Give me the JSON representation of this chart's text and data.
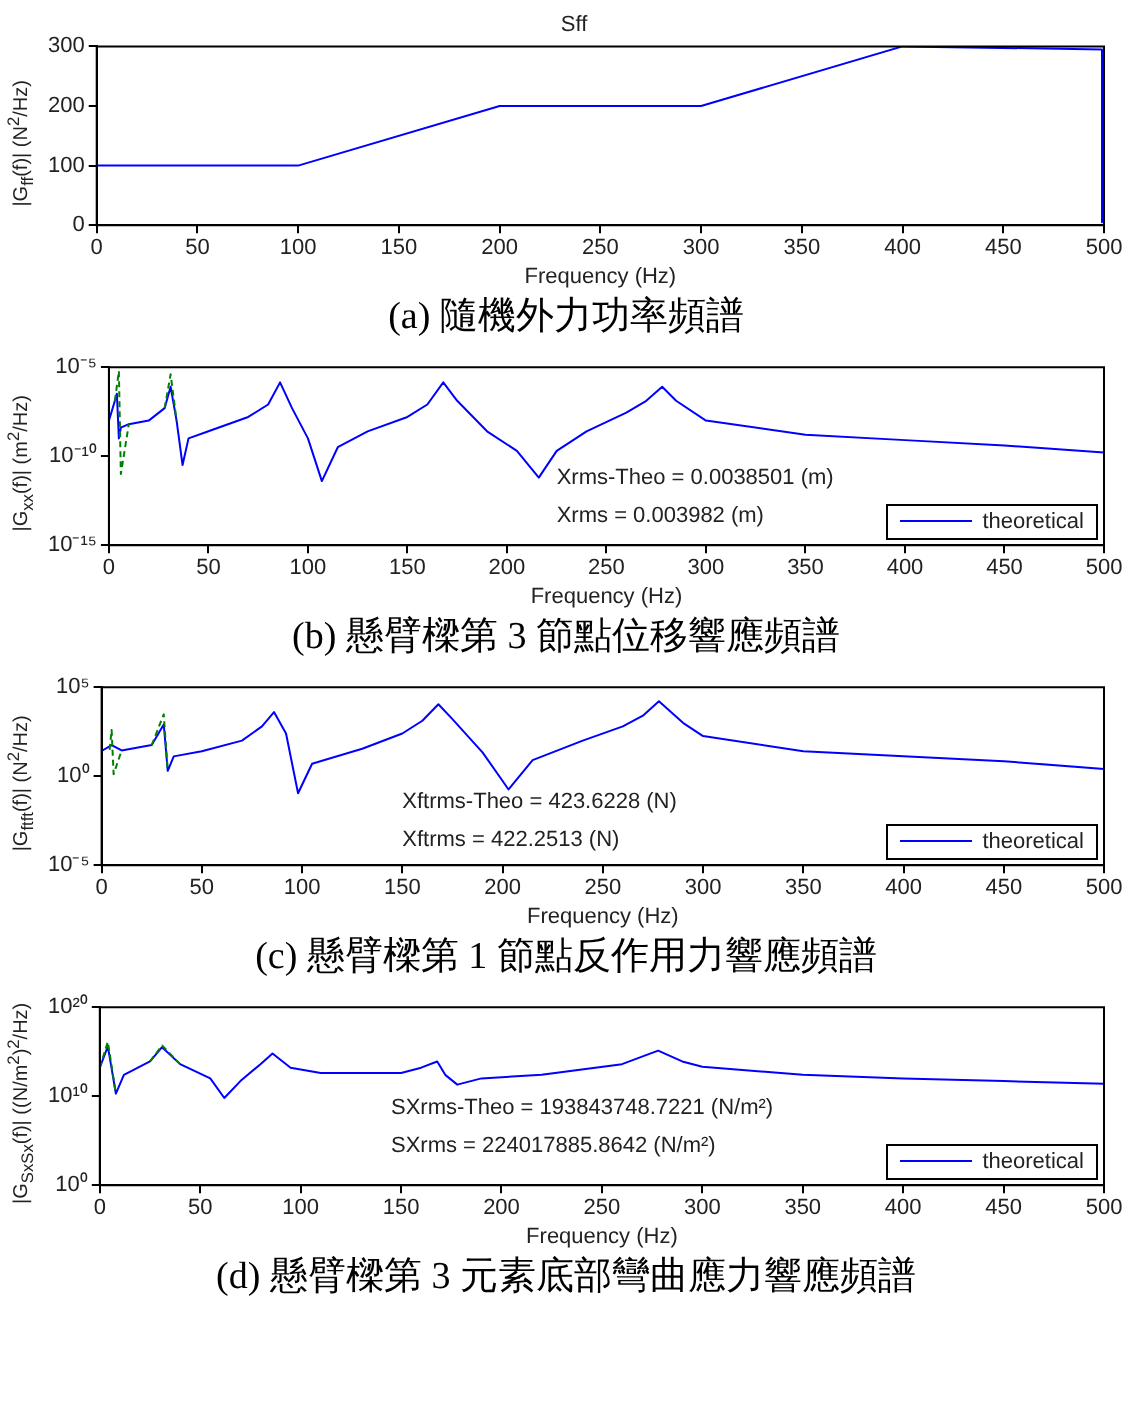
{
  "chart_data": [
    {
      "type": "line",
      "title": "Sff",
      "xlabel": "Frequency (Hz)",
      "ylabel": "|G$_{ff}$(f)| (N$^{2}$/Hz)",
      "xlim": [
        0,
        500
      ],
      "xticks": [
        0,
        50,
        100,
        150,
        200,
        250,
        300,
        350,
        400,
        450,
        500
      ],
      "ylim": [
        0,
        300
      ],
      "yticks": [
        0,
        100,
        200,
        300
      ],
      "grid": false,
      "legend": false,
      "series": [
        {
          "color": "#0000ff",
          "x": [
            0,
            100,
            200,
            300,
            400,
            499,
            499
          ],
          "values": [
            100,
            100,
            200,
            200,
            300,
            295,
            5
          ]
        }
      ],
      "annotations": [
        "(a) 隨機外力功率頻譜"
      ]
    },
    {
      "type": "line",
      "xlabel": "Frequency (Hz)",
      "ylabel": "|G$_{xx}$(f)| (m$^{2}$/Hz)",
      "log": "y",
      "xlim": [
        0,
        500
      ],
      "xticks": [
        0,
        50,
        100,
        150,
        200,
        250,
        300,
        350,
        400,
        450,
        500
      ],
      "ylim": [
        1e-15,
        1e-05
      ],
      "yticks": [
        {
          "value": 1e-15,
          "label": "10⁻¹⁵"
        },
        {
          "value": 1e-10,
          "label": "10⁻¹⁰"
        },
        {
          "value": 1e-05,
          "label": "10⁻⁵"
        }
      ],
      "grid": false,
      "legend": "bottom right",
      "series": [
        {
          "name": "theoretical",
          "color": "#0000ff",
          "x": [
            0,
            3,
            4,
            5,
            6,
            10,
            20,
            28,
            31,
            34,
            37,
            40,
            50,
            70,
            80,
            86,
            92,
            100,
            107,
            115,
            130,
            150,
            160,
            168,
            175,
            190,
            205,
            216,
            225,
            240,
            260,
            270,
            278,
            285,
            300,
            350,
            400,
            450,
            500
          ],
          "values": [
            1e-08,
            1.3e-07,
            3.2e-07,
            1e-09,
            4e-09,
            6.3e-09,
            1e-08,
            5e-08,
            8e-07,
            1e-08,
            3.2e-11,
            1e-09,
            2.5e-09,
            1.6e-08,
            8e-08,
            1.4e-06,
            5e-08,
            1e-09,
            4e-12,
            3.2e-10,
            2.5e-09,
            1.6e-08,
            8e-08,
            1.4e-06,
            1.3e-07,
            2.5e-09,
            2e-10,
            6.3e-12,
            2e-10,
            2.5e-09,
            2.8e-08,
            1.3e-07,
            8e-07,
            1.3e-07,
            1e-08,
            1.6e-09,
            8e-10,
            4e-10,
            1.6e-10
          ]
        },
        {
          "color": "#008000",
          "line_style": "dashed",
          "x": [
            3,
            5,
            6,
            10,
            20,
            28,
            31,
            34
          ],
          "values": [
            1.3e-07,
            6e-06,
            1e-11,
            6.3e-09,
            null,
            5e-08,
            4e-06,
            1e-08
          ]
        }
      ],
      "annotations": [
        "Xrms-Theo = 0.0038501 (m)",
        "Xrms = 0.003982 (m)",
        "(b) 懸臂樑第 3 節點位移響應頻譜"
      ]
    },
    {
      "type": "line",
      "xlabel": "Frequency (Hz)",
      "ylabel": "|G$_{ftft}$(f)| (N$^{2}$/Hz)",
      "log": "y",
      "xlim": [
        0,
        500
      ],
      "xticks": [
        0,
        50,
        100,
        150,
        200,
        250,
        300,
        350,
        400,
        450,
        500
      ],
      "ylim": [
        1e-05,
        100000.0
      ],
      "yticks": [
        {
          "value": 1e-05,
          "label": "10⁻⁵"
        },
        {
          "value": 1,
          "label": "10⁰"
        },
        {
          "value": 100000.0,
          "label": "10⁵"
        }
      ],
      "grid": false,
      "legend": "bottom right",
      "series": [
        {
          "name": "theoretical",
          "color": "#0000ff",
          "x": [
            0,
            5,
            10,
            25,
            31,
            33,
            36,
            50,
            70,
            80,
            86,
            92,
            98,
            105,
            130,
            150,
            160,
            168,
            175,
            190,
            203,
            215,
            240,
            260,
            270,
            278,
            290,
            300,
            350,
            400,
            450,
            500
          ],
          "values": [
            26,
            56,
            28,
            56,
            800,
            2,
            13,
            25,
            100,
            630,
            4000,
            250,
            0.11,
            5,
            35,
            250,
            1300,
            11000,
            1600,
            22,
            0.18,
            8,
            100,
            630,
            2500,
            16000,
            1000,
            180,
            25,
            13,
            7,
            2.5
          ]
        },
        {
          "color": "#008000",
          "line_style": "dashed",
          "x": [
            4,
            5,
            6,
            10,
            20,
            25,
            31,
            33
          ],
          "values": [
            30,
            400,
            1.3,
            28,
            null,
            56,
            3000,
            2
          ]
        }
      ],
      "annotations": [
        "Xftrms-Theo = 423.6228 (N)",
        "Xftrms = 422.2513 (N)",
        "(c) 懸臂樑第 1 節點反作用力響應頻譜"
      ]
    },
    {
      "type": "line",
      "xlabel": "Frequency (Hz)",
      "ylabel": "|G$_{SxSx}$(f)| ((N/m$^{2}$)$^{2}$/Hz)",
      "log": "y",
      "xlim": [
        0,
        500
      ],
      "xticks": [
        0,
        50,
        100,
        150,
        200,
        250,
        300,
        350,
        400,
        450,
        500
      ],
      "ylim": [
        1,
        1e+20
      ],
      "yticks": [
        {
          "value": 1,
          "label": "10⁰"
        },
        {
          "value": 10000000000.0,
          "label": "10¹⁰"
        },
        {
          "value": 1e+20,
          "label": "10²⁰"
        }
      ],
      "grid": false,
      "legend": "bottom right",
      "series": [
        {
          "name": "theoretical",
          "color": "#0000ff",
          "x": [
            0,
            4,
            8,
            12,
            25,
            31,
            40,
            55,
            62,
            70,
            80,
            86,
            95,
            110,
            150,
            160,
            168,
            172,
            178,
            190,
            220,
            260,
            278,
            290,
            300,
            350,
            400,
            450,
            500
          ],
          "values": [
            16000000000000.0,
            4000000000000000.0,
            20000000000.0,
            2500000000000.0,
            80000000000000.0,
            3200000000000000.0,
            40000000000000.0,
            1000000000000.0,
            6300000000.0,
            500000000000.0,
            40000000000000.0,
            630000000000000.0,
            16000000000000.0,
            4000000000000.0,
            4000000000000.0,
            16000000000000.0,
            80000000000000.0,
            2500000000000.0,
            200000000000.0,
            1000000000000.0,
            2500000000000.0,
            40000000000000.0,
            1300000000000000.0,
            80000000000000.0,
            20000000000000.0,
            2500000000000.0,
            1000000000000.0,
            500000000000.0,
            250000000000.0
          ]
        },
        {
          "color": "#008000",
          "line_style": "dashed",
          "x": [
            0,
            4,
            8,
            12,
            25,
            31,
            40
          ],
          "values": [
            16000000000000.0,
            1.3e+16,
            20000000000.0,
            null,
            80000000000000.0,
            5000000000000000.0,
            40000000000000.0
          ]
        }
      ],
      "annotations": [
        "SXrms-Theo = 193843748.7221 (N/m²)",
        "SXrms = 224017885.8642 (N/m²)",
        "(d) 懸臂樑第 3 元素底部彎曲應力響應頻譜"
      ]
    }
  ]
}
